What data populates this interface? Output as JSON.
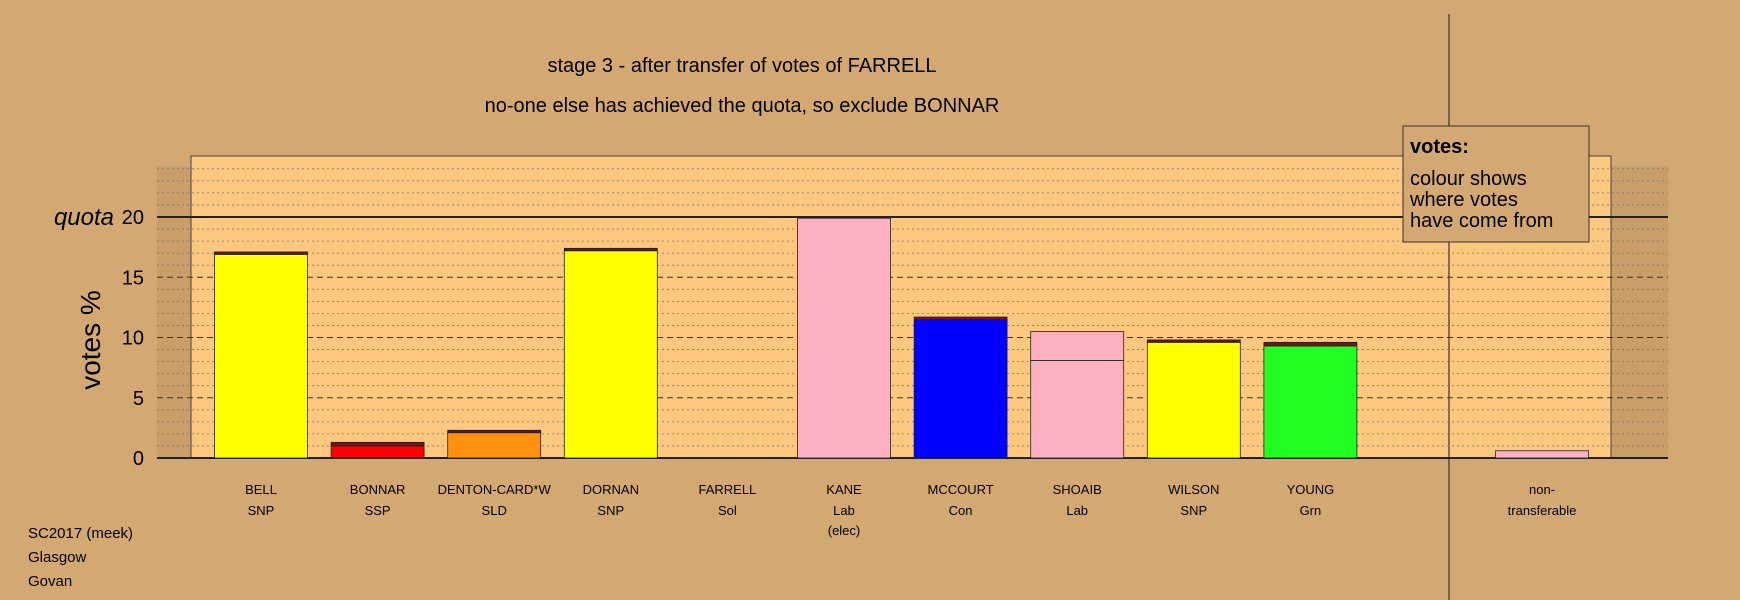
{
  "chart_data": {
    "type": "bar",
    "title": "stage 3 - after transfer of votes of FARRELL",
    "subtitle": "no-one else has achieved the quota, so exclude BONNAR",
    "ylabel": "votes %",
    "quota_label": "quota",
    "quota_value": 20,
    "ylim": [
      0,
      25
    ],
    "yticks": [
      0,
      5,
      10,
      15,
      20
    ],
    "grid": true,
    "legend": {
      "position": "top-right",
      "title": "votes:",
      "lines": [
        "colour shows",
        "where votes",
        "have come from"
      ]
    },
    "candidates": [
      {
        "name": "BELL",
        "party": "SNP",
        "note": "",
        "segments": [
          {
            "value": 16.9,
            "color": "#ffff00"
          },
          {
            "value": 0.2,
            "color": "#7a1010"
          }
        ]
      },
      {
        "name": "BONNAR",
        "party": "SSP",
        "note": "",
        "segments": [
          {
            "value": 1.0,
            "color": "#ff0000"
          },
          {
            "value": 0.3,
            "color": "#7a1010"
          }
        ]
      },
      {
        "name": "DENTON-CARD*W",
        "party": "SLD",
        "note": "",
        "segments": [
          {
            "value": 2.1,
            "color": "#ff9010"
          },
          {
            "value": 0.2,
            "color": "#7a1010"
          }
        ]
      },
      {
        "name": "DORNAN",
        "party": "SNP",
        "note": "",
        "segments": [
          {
            "value": 17.2,
            "color": "#ffff00"
          },
          {
            "value": 0.2,
            "color": "#7a1010"
          }
        ]
      },
      {
        "name": "FARRELL",
        "party": "Sol",
        "note": "",
        "segments": [
          {
            "value": 0.05,
            "color": "#7a1010"
          }
        ]
      },
      {
        "name": "KANE",
        "party": "Lab",
        "note": "(elec)",
        "segments": [
          {
            "value": 19.9,
            "color": "#ffb0c0"
          }
        ]
      },
      {
        "name": "MCCOURT",
        "party": "Con",
        "note": "",
        "segments": [
          {
            "value": 11.5,
            "color": "#0000ff"
          },
          {
            "value": 0.2,
            "color": "#7a1010"
          }
        ]
      },
      {
        "name": "SHOAIB",
        "party": "Lab",
        "note": "",
        "segments": [
          {
            "value": 8.1,
            "color": "#ffb0c0"
          },
          {
            "value": 2.4,
            "color": "#ffb0c0"
          }
        ]
      },
      {
        "name": "WILSON",
        "party": "SNP",
        "note": "",
        "segments": [
          {
            "value": 9.6,
            "color": "#ffff00"
          },
          {
            "value": 0.2,
            "color": "#7a1010"
          }
        ]
      },
      {
        "name": "YOUNG",
        "party": "Grn",
        "note": "",
        "segments": [
          {
            "value": 9.3,
            "color": "#20ff20"
          },
          {
            "value": 0.3,
            "color": "#7a1010"
          }
        ]
      }
    ],
    "nontransferable": {
      "line1": "non-",
      "line2": "transferable",
      "value": 0.6,
      "color": "#ffb0c0"
    }
  },
  "footer": {
    "lines": [
      "SC2017 (meek)",
      "Glasgow",
      "Govan"
    ]
  },
  "colors": {
    "background": "#d4a872",
    "plot_area": "#ffc880"
  }
}
